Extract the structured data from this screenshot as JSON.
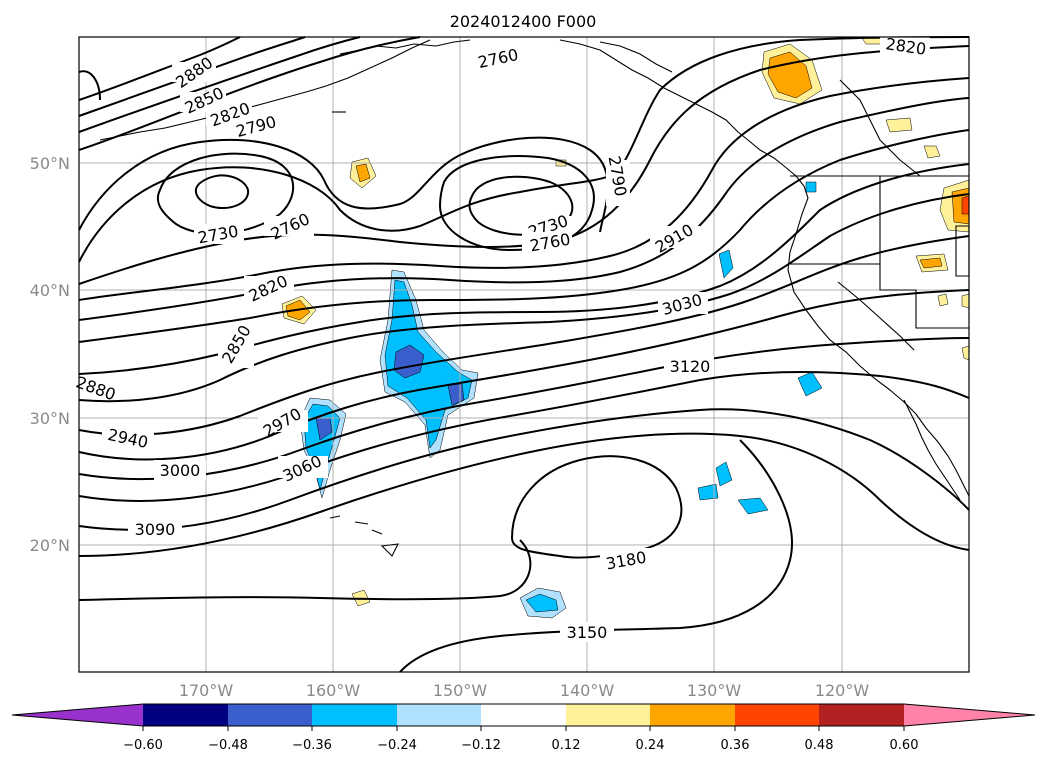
{
  "title": "2024012400 F000",
  "axes": {
    "lat_labels": [
      "50°N",
      "40°N",
      "30°N",
      "20°N"
    ],
    "lon_labels": [
      "170°W",
      "160°W",
      "150°W",
      "140°W",
      "130°W",
      "120°W"
    ]
  },
  "contour_labels": [
    "2880",
    "2850",
    "2820",
    "2790",
    "2760",
    "2820",
    "2730",
    "2760",
    "2730",
    "2760",
    "2790",
    "2910",
    "2820",
    "2850",
    "3030",
    "3120",
    "2880",
    "2940",
    "2970",
    "3000",
    "3060",
    "3090",
    "3180",
    "3150"
  ],
  "colorbar": {
    "ticks": [
      "−0.60",
      "−0.48",
      "−0.36",
      "−0.24",
      "−0.12",
      "0.12",
      "0.24",
      "0.36",
      "0.48",
      "0.60"
    ],
    "colors": [
      "#9932cc",
      "#000080",
      "#3a5fcd",
      "#00bfff",
      "#b0e2ff",
      "#ffffff",
      "#fff09a",
      "#ffa500",
      "#ff4500",
      "#b22222",
      "#ff83a8"
    ]
  },
  "anomaly_colors": {
    "neg_light": "#b0e2ff",
    "neg_mid": "#00bfff",
    "neg_strong": "#3a5fcd",
    "pos_light": "#fff09a",
    "pos_mid": "#ffa500",
    "pos_strong": "#ff4500"
  }
}
